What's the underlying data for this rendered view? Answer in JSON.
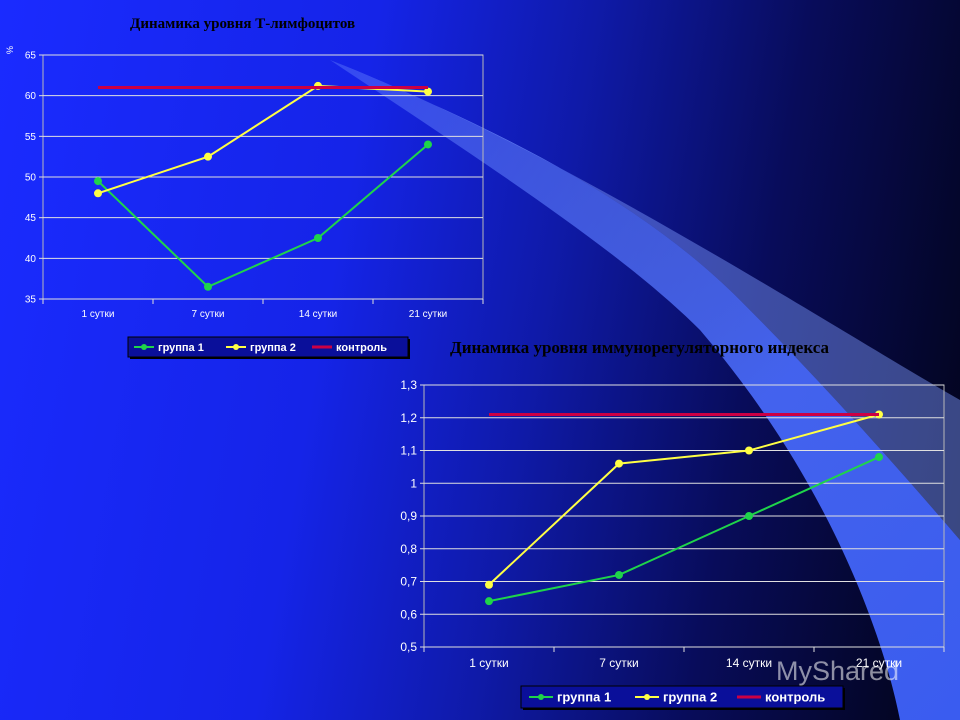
{
  "chart_data": [
    {
      "type": "line",
      "title": "Динамика уровня Т-лимфоцитов",
      "ylabel": "%",
      "categories": [
        "1 сутки",
        "7 сутки",
        "14 сутки",
        "21 сутки"
      ],
      "ylim": [
        35,
        65
      ],
      "yticks": [
        "35",
        "40",
        "45",
        "50",
        "55",
        "60",
        "65"
      ],
      "grid": true,
      "legend_position": "bottom",
      "series": [
        {
          "name": "группа 1",
          "color": "#1fd44a",
          "values": [
            49.5,
            36.5,
            42.5,
            54
          ]
        },
        {
          "name": "группа 2",
          "color": "#ffff44",
          "values": [
            48,
            52.5,
            61.2,
            60.5
          ]
        },
        {
          "name": "контроль",
          "color": "#cc0044",
          "values": [
            61,
            61,
            61,
            61
          ]
        }
      ]
    },
    {
      "type": "line",
      "title": "Динамика уровня иммунорегуляторного индекса",
      "categories": [
        "1 сутки",
        "7 сутки",
        "14 сутки",
        "21 сутки"
      ],
      "ylim": [
        0.5,
        1.3
      ],
      "yticks": [
        "0,5",
        "0,6",
        "0,7",
        "0,8",
        "0,9",
        "1",
        "1,1",
        "1,2",
        "1,3"
      ],
      "grid": true,
      "legend_position": "bottom",
      "series": [
        {
          "name": "группа 1",
          "color": "#1fd44a",
          "values": [
            0.64,
            0.72,
            0.9,
            1.08
          ]
        },
        {
          "name": "группа 2",
          "color": "#ffff44",
          "values": [
            0.69,
            1.06,
            1.1,
            1.21
          ]
        },
        {
          "name": "контроль",
          "color": "#cc0044",
          "values": [
            1.21,
            1.21,
            1.21,
            1.21
          ]
        }
      ]
    }
  ],
  "watermark": "MyShared"
}
